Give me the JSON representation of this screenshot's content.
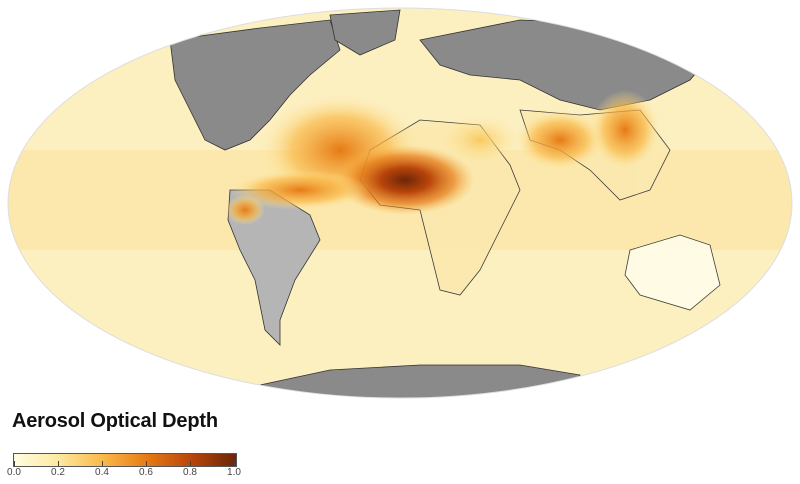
{
  "legend": {
    "title": "Aerosol Optical Depth",
    "ticks": [
      "0.0",
      "0.2",
      "0.4",
      "0.6",
      "0.8",
      "1.0"
    ],
    "range": [
      0.0,
      1.0
    ],
    "colors": [
      "#fffde0",
      "#fde9a0",
      "#f9b949",
      "#e67a14",
      "#b8450a",
      "#6b2508"
    ]
  },
  "map": {
    "projection": "mollweide",
    "land_no_data_color": "#8a8a8a",
    "ocean_low_color": "#fcf0c0"
  }
}
